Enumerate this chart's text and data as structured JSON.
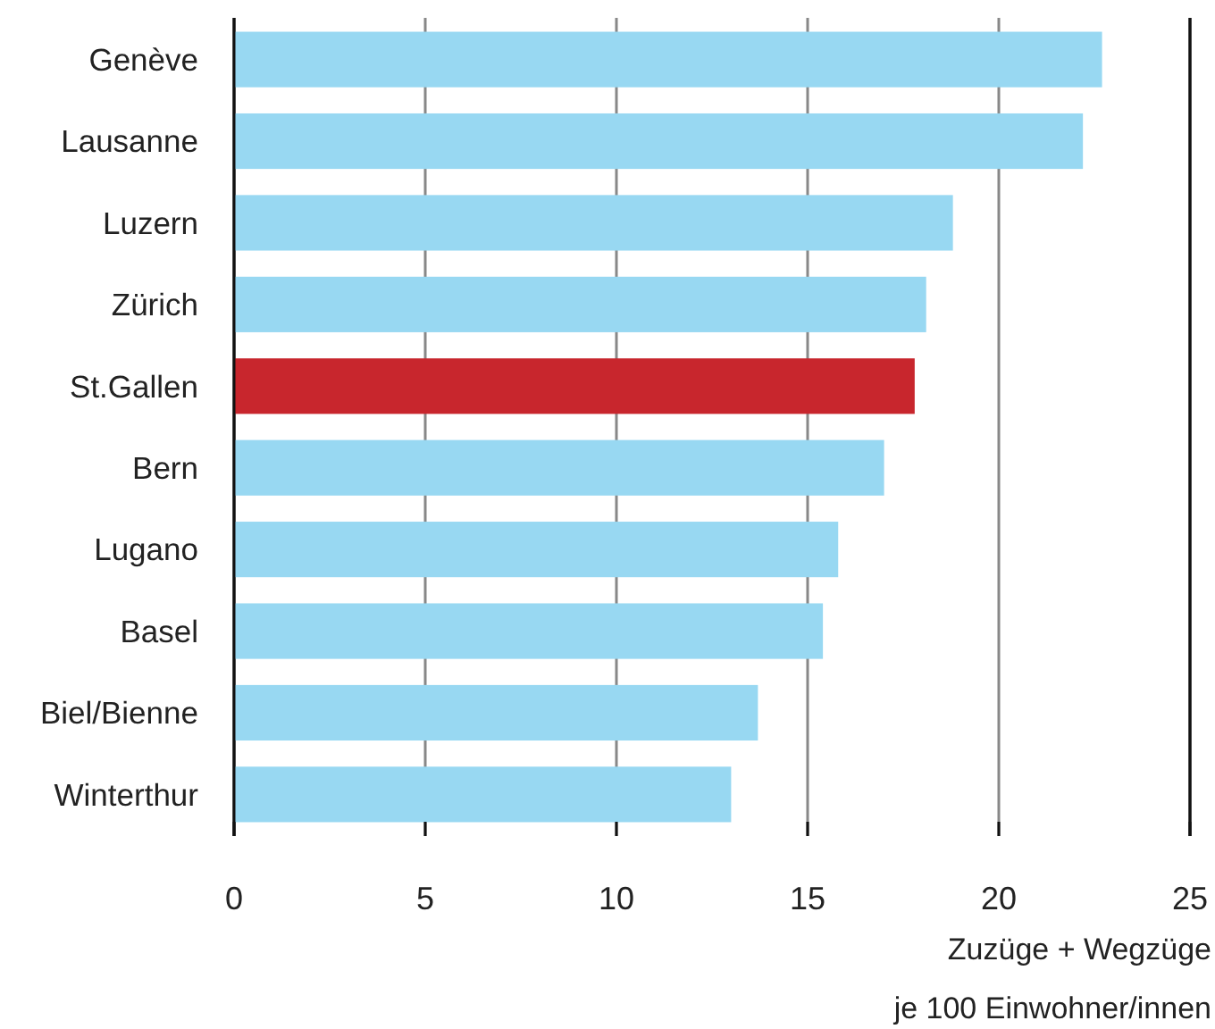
{
  "chart_data": {
    "type": "bar",
    "orientation": "horizontal",
    "categories": [
      "Genève",
      "Lausanne",
      "Luzern",
      "Zürich",
      "St.Gallen",
      "Bern",
      "Lugano",
      "Basel",
      "Biel/Bienne",
      "Winterthur"
    ],
    "values": [
      22.7,
      22.2,
      18.8,
      18.1,
      17.8,
      17.0,
      15.8,
      15.4,
      13.7,
      13.0
    ],
    "colors": [
      "#98d8f2",
      "#98d8f2",
      "#98d8f2",
      "#98d8f2",
      "#c8262d",
      "#98d8f2",
      "#98d8f2",
      "#98d8f2",
      "#98d8f2",
      "#98d8f2"
    ],
    "xlabel": "Zuzüge + Wegzüge\nje 100 Einwohner/innen",
    "xlim": [
      0,
      25
    ],
    "xticks": [
      0,
      5,
      10,
      15,
      20,
      25
    ],
    "grid": "x"
  }
}
